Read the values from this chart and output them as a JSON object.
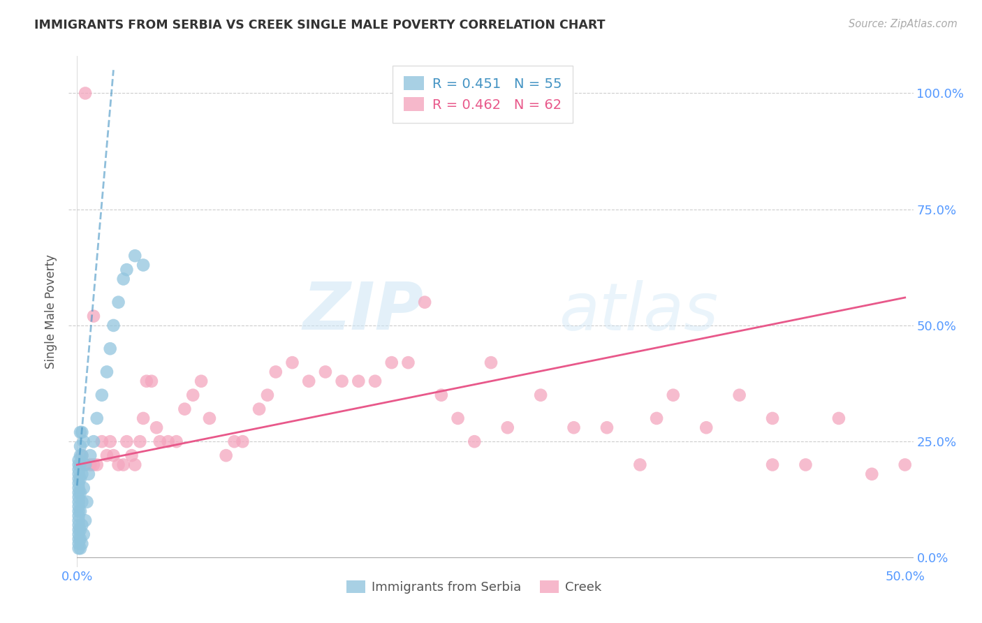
{
  "title": "IMMIGRANTS FROM SERBIA VS CREEK SINGLE MALE POVERTY CORRELATION CHART",
  "source": "Source: ZipAtlas.com",
  "ylabel": "Single Male Poverty",
  "x_tick_labels": [
    "0.0%",
    "",
    "",
    "",
    "",
    "50.0%"
  ],
  "x_tick_values": [
    0,
    0.1,
    0.2,
    0.3,
    0.4,
    0.5
  ],
  "y_tick_labels_right": [
    "0.0%",
    "25.0%",
    "50.0%",
    "75.0%",
    "100.0%"
  ],
  "y_tick_values": [
    0,
    0.25,
    0.5,
    0.75,
    1.0
  ],
  "xlim": [
    -0.005,
    0.505
  ],
  "ylim": [
    -0.02,
    1.08
  ],
  "serbia_R": 0.451,
  "serbia_N": 55,
  "creek_R": 0.462,
  "creek_N": 62,
  "serbia_color": "#92c5de",
  "creek_color": "#f4a6be",
  "serbia_line_color": "#4393c3",
  "creek_line_color": "#e8588a",
  "watermark_zip": "ZIP",
  "watermark_atlas": "atlas",
  "legend_serbia": "Immigrants from Serbia",
  "legend_creek": "Creek",
  "serbia_scatter_x": [
    0.001,
    0.001,
    0.001,
    0.001,
    0.001,
    0.001,
    0.001,
    0.001,
    0.001,
    0.001,
    0.001,
    0.001,
    0.001,
    0.001,
    0.001,
    0.001,
    0.001,
    0.001,
    0.001,
    0.001,
    0.002,
    0.002,
    0.002,
    0.002,
    0.002,
    0.002,
    0.002,
    0.002,
    0.002,
    0.002,
    0.003,
    0.003,
    0.003,
    0.003,
    0.003,
    0.003,
    0.004,
    0.004,
    0.004,
    0.005,
    0.005,
    0.006,
    0.007,
    0.008,
    0.01,
    0.012,
    0.015,
    0.018,
    0.02,
    0.022,
    0.025,
    0.028,
    0.03,
    0.035,
    0.04
  ],
  "serbia_scatter_y": [
    0.02,
    0.03,
    0.04,
    0.05,
    0.06,
    0.07,
    0.08,
    0.09,
    0.1,
    0.11,
    0.12,
    0.13,
    0.14,
    0.15,
    0.16,
    0.17,
    0.18,
    0.19,
    0.2,
    0.21,
    0.02,
    0.04,
    0.06,
    0.1,
    0.14,
    0.17,
    0.2,
    0.22,
    0.24,
    0.27,
    0.03,
    0.07,
    0.12,
    0.18,
    0.22,
    0.27,
    0.05,
    0.15,
    0.25,
    0.08,
    0.2,
    0.12,
    0.18,
    0.22,
    0.25,
    0.3,
    0.35,
    0.4,
    0.45,
    0.5,
    0.55,
    0.6,
    0.62,
    0.65,
    0.63
  ],
  "creek_scatter_x": [
    0.003,
    0.005,
    0.008,
    0.01,
    0.012,
    0.015,
    0.018,
    0.02,
    0.022,
    0.025,
    0.028,
    0.03,
    0.033,
    0.035,
    0.038,
    0.04,
    0.042,
    0.045,
    0.048,
    0.05,
    0.055,
    0.06,
    0.065,
    0.07,
    0.075,
    0.08,
    0.09,
    0.095,
    0.1,
    0.11,
    0.115,
    0.12,
    0.13,
    0.14,
    0.15,
    0.16,
    0.17,
    0.18,
    0.19,
    0.2,
    0.21,
    0.22,
    0.23,
    0.24,
    0.25,
    0.26,
    0.28,
    0.3,
    0.32,
    0.34,
    0.36,
    0.38,
    0.4,
    0.42,
    0.44,
    0.46,
    0.48,
    0.35,
    0.42,
    0.5,
    0.005,
    0.01
  ],
  "creek_scatter_y": [
    0.22,
    0.2,
    0.2,
    0.2,
    0.2,
    0.25,
    0.22,
    0.25,
    0.22,
    0.2,
    0.2,
    0.25,
    0.22,
    0.2,
    0.25,
    0.3,
    0.38,
    0.38,
    0.28,
    0.25,
    0.25,
    0.25,
    0.32,
    0.35,
    0.38,
    0.3,
    0.22,
    0.25,
    0.25,
    0.32,
    0.35,
    0.4,
    0.42,
    0.38,
    0.4,
    0.38,
    0.38,
    0.38,
    0.42,
    0.42,
    0.55,
    0.35,
    0.3,
    0.25,
    0.42,
    0.28,
    0.35,
    0.28,
    0.28,
    0.2,
    0.35,
    0.28,
    0.35,
    0.3,
    0.2,
    0.3,
    0.18,
    0.3,
    0.2,
    0.2,
    1.0,
    0.52
  ],
  "serbia_line_x": [
    0.0,
    0.022
  ],
  "serbia_line_y": [
    0.155,
    1.05
  ],
  "creek_line_x": [
    0.0,
    0.5
  ],
  "creek_line_y": [
    0.2,
    0.56
  ]
}
